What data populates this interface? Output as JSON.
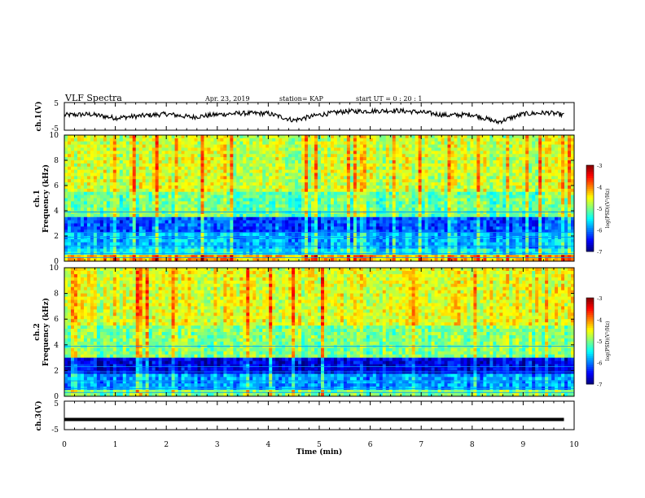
{
  "header": {
    "title": "VLF Spectra",
    "date": "Apr. 23, 2019",
    "station": "station= KAP",
    "start": "start  UT  =   0  : 20 : 1"
  },
  "chart_data": [
    {
      "type": "line",
      "panel": "ch1-voltage",
      "ylabel": "ch.1(V)",
      "yticks": [
        "5",
        "-5"
      ],
      "ylim": [
        -5,
        5
      ],
      "xlim": [
        0,
        10
      ],
      "series_color": "#000000",
      "series": [
        {
          "x": [
            0,
            0.5,
            1,
            1.5,
            2,
            2.5,
            3,
            3.5,
            4,
            4.5,
            5,
            5.5,
            6,
            6.5,
            7,
            7.5,
            8,
            8.5,
            9,
            9.5,
            9.8
          ],
          "values": [
            0.5,
            0.8,
            -0.6,
            0.2,
            0.9,
            -0.3,
            0.7,
            1.2,
            1.1,
            -1.5,
            0.6,
            1.9,
            2.0,
            2.2,
            1.6,
            0.4,
            0.7,
            -2.2,
            0.9,
            1.4,
            0.5
          ]
        }
      ]
    },
    {
      "type": "heatmap",
      "panel": "ch1-spectrogram",
      "ylabel": "ch.1\nFrequency (kHz)",
      "ylabel_lines": [
        "ch.1",
        "Frequency  (kHz)"
      ],
      "yticks": [
        "0",
        "2",
        "4",
        "6",
        "8",
        "10"
      ],
      "ylim": [
        0,
        10
      ],
      "xlim": [
        0,
        10
      ],
      "colorbar": {
        "ticks": [
          "-3",
          "-4",
          "-5",
          "-6",
          "-7"
        ],
        "range": [
          -7,
          -3
        ],
        "label": "log(PSD)(V²/Hz)"
      },
      "bands": [
        {
          "from": 0,
          "to": 0.5,
          "level": -4.2
        },
        {
          "from": 0.5,
          "to": 1.0,
          "level": -5.5
        },
        {
          "from": 1.0,
          "to": 2.2,
          "level": -5.8
        },
        {
          "from": 2.2,
          "to": 3.4,
          "level": -6.2
        },
        {
          "from": 3.4,
          "to": 5.5,
          "level": -5.1
        },
        {
          "from": 5.5,
          "to": 10,
          "level": -4.7
        }
      ]
    },
    {
      "type": "heatmap",
      "panel": "ch2-spectrogram",
      "ylabel_lines": [
        "ch.2",
        "Frequency  (kHz)"
      ],
      "yticks": [
        "0",
        "2",
        "4",
        "6",
        "8",
        "10"
      ],
      "ylim": [
        0,
        10
      ],
      "xlim": [
        0,
        10
      ],
      "colorbar": {
        "ticks": [
          "-3",
          "-4",
          "-5",
          "-6",
          "-7"
        ],
        "range": [
          -7,
          -3
        ],
        "label": "log(PSD)(V²/Hz)"
      },
      "bands": [
        {
          "from": 0,
          "to": 0.5,
          "level": -5.0
        },
        {
          "from": 0.5,
          "to": 1.8,
          "level": -5.9
        },
        {
          "from": 1.8,
          "to": 3.0,
          "level": -6.6
        },
        {
          "from": 3.0,
          "to": 5.5,
          "level": -5.0
        },
        {
          "from": 5.5,
          "to": 10,
          "level": -4.6
        }
      ]
    },
    {
      "type": "line",
      "panel": "ch3-voltage",
      "ylabel": "ch.3(V)",
      "yticks": [
        "5",
        "-5"
      ],
      "ylim": [
        -5,
        5
      ],
      "xlim": [
        0,
        10
      ],
      "series_color": "#000000",
      "series": [
        {
          "x": [
            0,
            9.8
          ],
          "values": [
            -1.5,
            -1.5
          ]
        }
      ]
    }
  ],
  "xaxis": {
    "label": "Time  (min)",
    "ticks": [
      "0",
      "1",
      "2",
      "3",
      "4",
      "5",
      "6",
      "7",
      "8",
      "9",
      "10"
    ]
  }
}
